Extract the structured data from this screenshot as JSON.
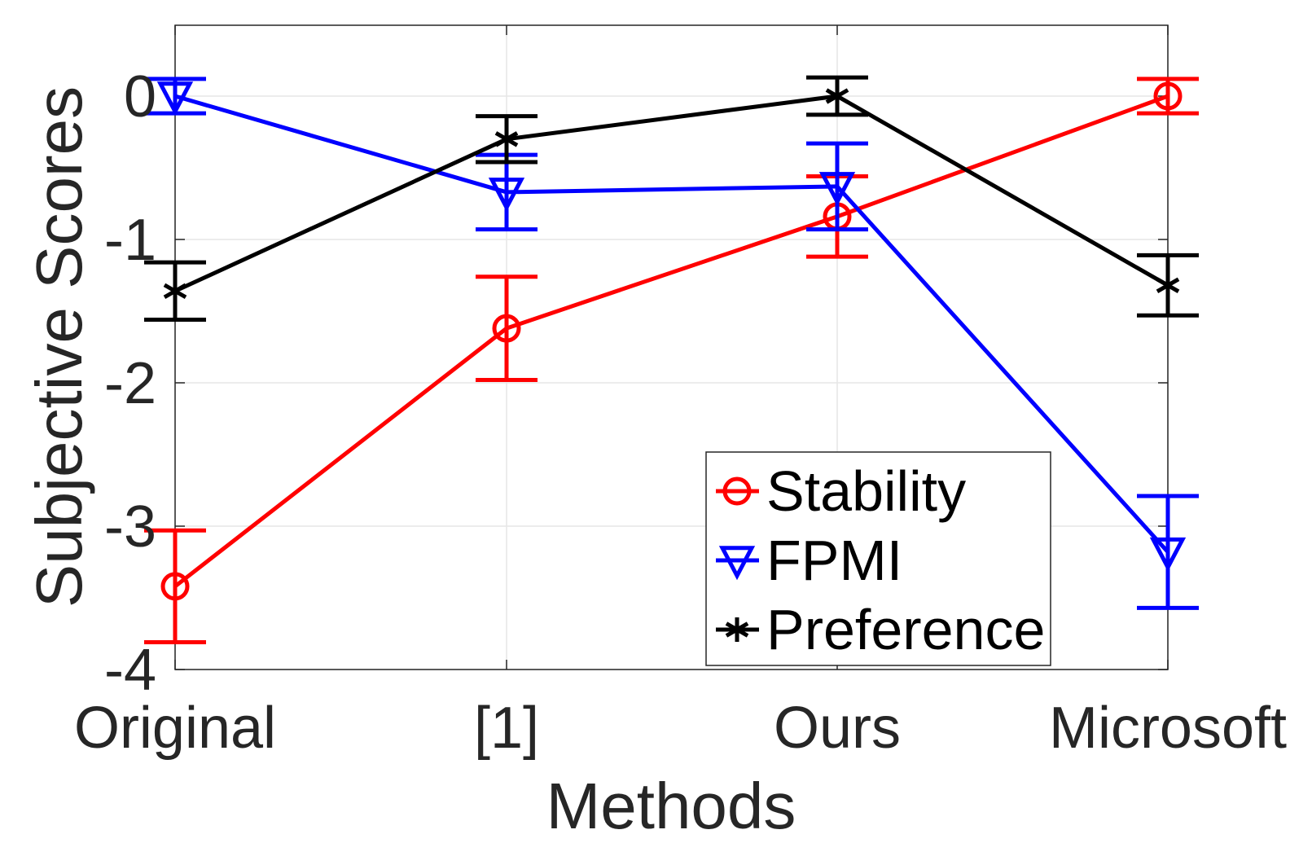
{
  "chart_data": {
    "type": "line",
    "title": "",
    "xlabel": "Methods",
    "ylabel": "Subjective Scores",
    "categories": [
      "Original",
      "[1]",
      "Ours",
      "Microsoft"
    ],
    "y_ticks": [
      0,
      -1,
      -2,
      -3,
      -4
    ],
    "y_tick_labels": [
      "0",
      "-1",
      "-2",
      "-3",
      "-4"
    ],
    "ylim": [
      -4,
      0.5
    ],
    "grid": true,
    "legend_position": "bottom-right",
    "series": [
      {
        "name": "Stability",
        "color": "#ff0000",
        "marker": "circle",
        "values": [
          -3.42,
          -1.62,
          -0.84,
          0.0
        ],
        "error": [
          0.39,
          0.36,
          0.28,
          0.12
        ]
      },
      {
        "name": "FPMI",
        "color": "#0000ff",
        "marker": "triangle-down",
        "values": [
          0.0,
          -0.67,
          -0.63,
          -3.18
        ],
        "error": [
          0.12,
          0.26,
          0.3,
          0.39
        ]
      },
      {
        "name": "Preference",
        "color": "#000000",
        "marker": "asterisk",
        "values": [
          -1.36,
          -0.3,
          0.0,
          -1.32
        ],
        "error": [
          0.2,
          0.16,
          0.13,
          0.21
        ]
      }
    ]
  }
}
